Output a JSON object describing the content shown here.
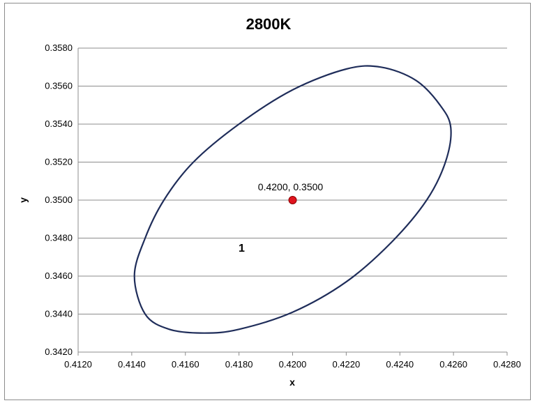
{
  "chart_data": {
    "type": "scatter",
    "title": "2800K",
    "xlabel": "x",
    "ylabel": "y",
    "xlim": [
      0.412,
      0.428
    ],
    "ylim": [
      0.342,
      0.358
    ],
    "x_ticks": [
      "0.4120",
      "0.4140",
      "0.4160",
      "0.4180",
      "0.4200",
      "0.4220",
      "0.4240",
      "0.4260",
      "0.4280"
    ],
    "y_ticks": [
      "0.3420",
      "0.3440",
      "0.3460",
      "0.3480",
      "0.3500",
      "0.3520",
      "0.3540",
      "0.3560",
      "0.3580"
    ],
    "grid": "horizontal",
    "ellipse": {
      "center": [
        0.42,
        0.35
      ],
      "color": "#1f2d5a",
      "points": [
        [
          0.4233,
          0.357
        ],
        [
          0.4246,
          0.3563
        ],
        [
          0.4255,
          0.355
        ],
        [
          0.4259,
          0.3538
        ],
        [
          0.4257,
          0.352
        ],
        [
          0.425,
          0.35
        ],
        [
          0.4237,
          0.3478
        ],
        [
          0.422,
          0.3457
        ],
        [
          0.42,
          0.3441
        ],
        [
          0.418,
          0.3432
        ],
        [
          0.4167,
          0.343
        ],
        [
          0.4154,
          0.3432
        ],
        [
          0.4145,
          0.344
        ],
        [
          0.4141,
          0.346
        ],
        [
          0.4145,
          0.348
        ],
        [
          0.4152,
          0.35
        ],
        [
          0.4163,
          0.352
        ],
        [
          0.418,
          0.354
        ],
        [
          0.42,
          0.3558
        ],
        [
          0.422,
          0.3569
        ]
      ]
    },
    "point": {
      "x": 0.42,
      "y": 0.35,
      "label": "0.4200, 0.3500",
      "color": "#e0141e"
    },
    "annotation": {
      "text": "1",
      "x": 0.4181,
      "y": 0.3475
    }
  }
}
